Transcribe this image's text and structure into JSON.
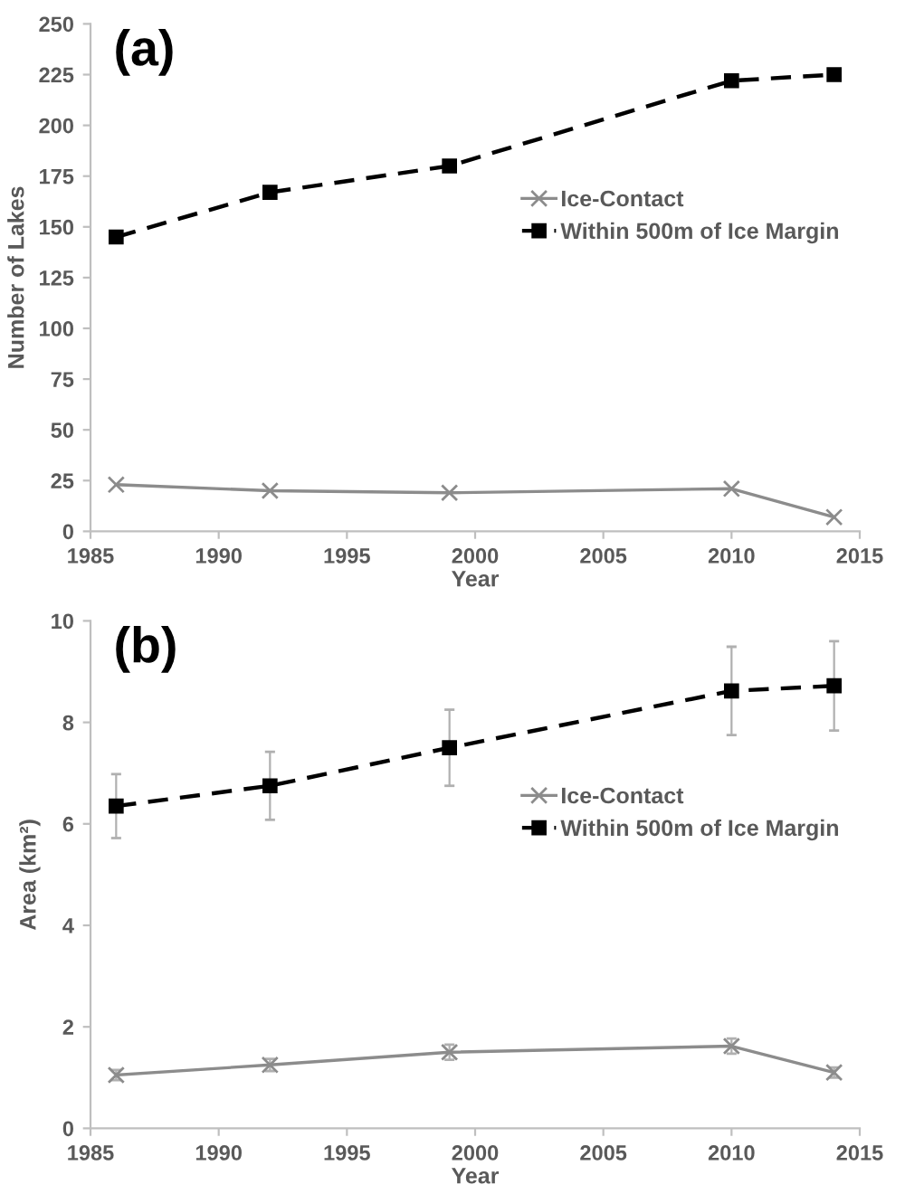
{
  "chart_data": [
    {
      "type": "line",
      "title": "(a)",
      "xlabel": "Year",
      "ylabel": "Number of Lakes",
      "x": [
        1986,
        1992,
        1999,
        2010,
        2014
      ],
      "series": [
        {
          "name": "Ice-Contact",
          "color": "#8c8c8c",
          "marker": "cross",
          "line_style": "solid",
          "values": [
            23,
            20,
            19,
            21,
            7
          ]
        },
        {
          "name": "Within 500m of Ice Margin",
          "color": "#000000",
          "marker": "square",
          "line_style": "dashed",
          "values": [
            145,
            167,
            180,
            222,
            225
          ]
        }
      ],
      "xlim": [
        1985,
        2015
      ],
      "xticks": [
        1985,
        1990,
        1995,
        2000,
        2005,
        2010,
        2015
      ],
      "ylim": [
        0,
        250
      ],
      "yticks": [
        0,
        25,
        50,
        75,
        100,
        125,
        150,
        175,
        200,
        225,
        250
      ],
      "grid": false,
      "legend": "right"
    },
    {
      "type": "line",
      "title": "(b)",
      "xlabel": "Year",
      "ylabel": "Area (km²)",
      "x": [
        1986,
        1992,
        1999,
        2010,
        2014
      ],
      "series": [
        {
          "name": "Ice-Contact",
          "color": "#8c8c8c",
          "marker": "cross",
          "line_style": "solid",
          "values": [
            1.05,
            1.25,
            1.5,
            1.62,
            1.1
          ],
          "errors": [
            0.1,
            0.12,
            0.15,
            0.15,
            0.1
          ]
        },
        {
          "name": "Within 500m of Ice Margin",
          "color": "#000000",
          "marker": "square",
          "line_style": "dashed",
          "values": [
            6.35,
            6.75,
            7.5,
            8.62,
            8.72
          ],
          "errors": [
            0.63,
            0.67,
            0.75,
            0.87,
            0.88
          ]
        }
      ],
      "xlim": [
        1985,
        2015
      ],
      "xticks": [
        1985,
        1990,
        1995,
        2000,
        2005,
        2010,
        2015
      ],
      "ylim": [
        0,
        10
      ],
      "yticks": [
        0,
        2,
        4,
        6,
        8,
        10
      ],
      "grid": false,
      "legend": "right"
    }
  ]
}
